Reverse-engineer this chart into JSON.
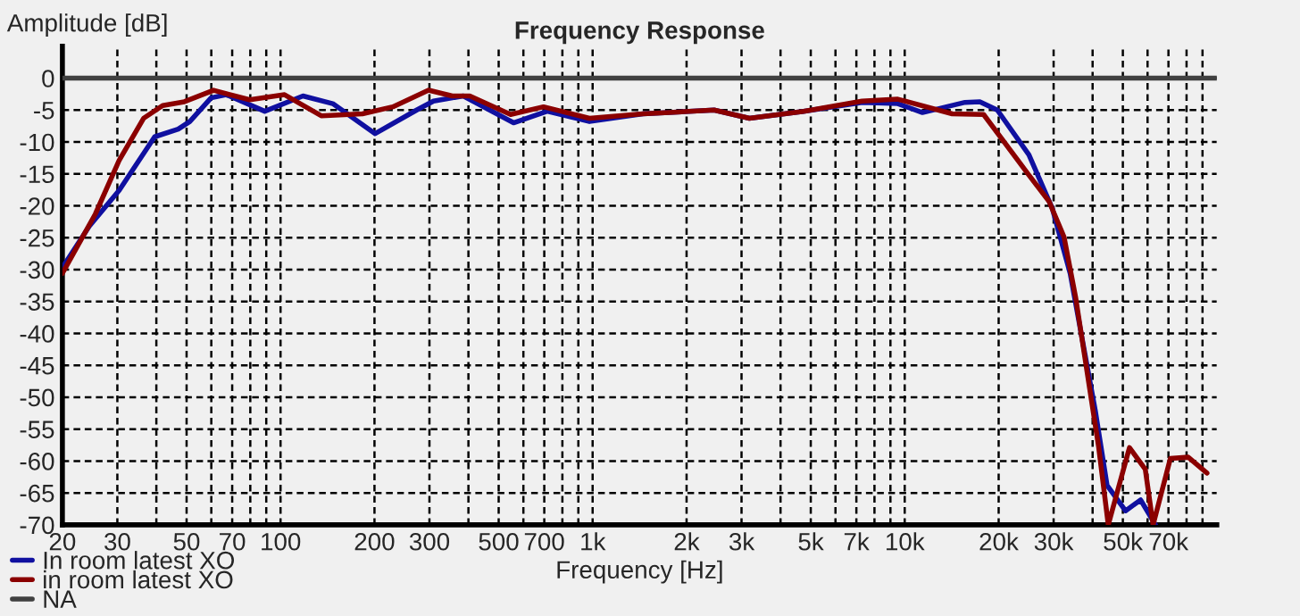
{
  "chart_data": {
    "type": "line",
    "title": "Frequency Response",
    "xlabel": "Frequency [Hz]",
    "ylabel": "Amplitude [dB]",
    "log": "x",
    "grid": true,
    "legend": "bottom left",
    "line_style": "solid",
    "marker": "none",
    "xlim": [
      20,
      100000
    ],
    "ylim": [
      -70,
      5
    ],
    "xticks": [
      20,
      30,
      {
        "value": 40,
        "label": null
      },
      50,
      {
        "value": 60,
        "label": null
      },
      70,
      {
        "value": 80,
        "label": null
      },
      {
        "value": 90,
        "label": null
      },
      100,
      200,
      300,
      {
        "value": 400,
        "label": null
      },
      500,
      {
        "value": 600,
        "label": null
      },
      700,
      {
        "value": 800,
        "label": null
      },
      {
        "value": 900,
        "label": null
      },
      {
        "value": 1000,
        "label": "1k"
      },
      {
        "value": 2000,
        "label": "2k"
      },
      {
        "value": 3000,
        "label": "3k"
      },
      {
        "value": 4000,
        "label": null
      },
      {
        "value": 5000,
        "label": "5k"
      },
      {
        "value": 6000,
        "label": null
      },
      {
        "value": 7000,
        "label": "7k"
      },
      {
        "value": 8000,
        "label": null
      },
      {
        "value": 9000,
        "label": null
      },
      {
        "value": 10000,
        "label": "10k"
      },
      {
        "value": 20000,
        "label": "20k"
      },
      {
        "value": 30000,
        "label": "30k"
      },
      {
        "value": 40000,
        "label": null
      },
      {
        "value": 50000,
        "label": "50k"
      },
      {
        "value": 60000,
        "label": null
      },
      {
        "value": 70000,
        "label": "70k"
      },
      {
        "value": 80000,
        "label": null
      },
      {
        "value": 90000,
        "label": null
      }
    ],
    "yticks": [
      -70,
      -65,
      -60,
      -55,
      -50,
      -45,
      -40,
      -35,
      -30,
      -25,
      -20,
      -15,
      -10,
      -5,
      0
    ],
    "series": [
      {
        "name": "In room latest XO",
        "color": "#1010a0",
        "x": [
          20,
          24.4,
          30.4,
          39.5,
          47,
          51.2,
          59.9,
          67,
          89,
          118,
          147,
          201,
          273,
          309,
          385,
          558,
          715,
          977,
          1450,
          2450,
          3180,
          4740,
          7300,
          9500,
          11400,
          15600,
          17400,
          19800,
          25000,
          29700,
          33900,
          40800,
          44500,
          51000,
          57000,
          63600
        ],
        "values": [
          -29.7,
          -23.2,
          -17.6,
          -9.2,
          -8.0,
          -6.8,
          -3.1,
          -2.6,
          -5.2,
          -2.8,
          -4.0,
          -8.7,
          -5.0,
          -3.6,
          -2.8,
          -7.0,
          -5.2,
          -6.8,
          -5.6,
          -5.0,
          -6.3,
          -5.2,
          -3.8,
          -4.0,
          -5.4,
          -3.8,
          -3.7,
          -5.0,
          -12.0,
          -20.4,
          -30.6,
          -52.1,
          -63.8,
          -67.8,
          -66.1,
          -70
        ]
      },
      {
        "name": "in room latest XO",
        "color": "#8b0000",
        "x": [
          20,
          25.5,
          30.4,
          36.4,
          41.9,
          49.2,
          61,
          79.6,
          103,
          135,
          183,
          229,
          298,
          355,
          404,
          546,
          696,
          977,
          1450,
          2450,
          3180,
          4740,
          7300,
          9500,
          14200,
          17900,
          25000,
          29000,
          32400,
          35300,
          41800,
          44900,
          52500,
          59000,
          62500,
          71000,
          81000,
          93000
        ],
        "values": [
          -30.6,
          -21.3,
          -12.9,
          -6.3,
          -4.3,
          -3.7,
          -1.9,
          -3.4,
          -2.6,
          -5.9,
          -5.6,
          -4.5,
          -1.9,
          -2.8,
          -2.8,
          -5.7,
          -4.5,
          -6.3,
          -5.6,
          -5.0,
          -6.3,
          -5.2,
          -3.6,
          -3.3,
          -5.6,
          -5.7,
          -15.2,
          -19.3,
          -24.9,
          -34.4,
          -57.7,
          -70,
          -57.9,
          -61.3,
          -70,
          -59.6,
          -59.4,
          -61.9
        ]
      },
      {
        "name": "NA",
        "color": "#404040",
        "x": [
          20,
          100000
        ],
        "values": [
          0,
          0
        ]
      }
    ]
  }
}
